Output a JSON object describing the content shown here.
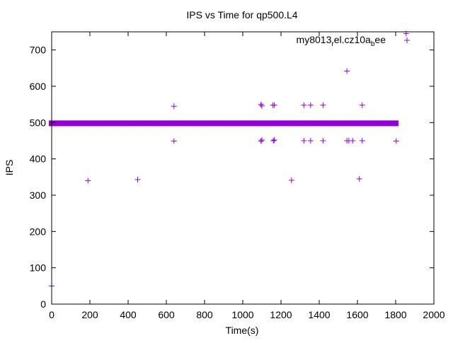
{
  "chart_data": {
    "type": "scatter",
    "title": "IPS vs Time for qp500.L4",
    "xlabel": "Time(s)",
    "ylabel": "IPS",
    "xlim": [
      0,
      2000
    ],
    "ylim": [
      0,
      750
    ],
    "xticks": [
      0,
      200,
      400,
      600,
      800,
      1000,
      1200,
      1400,
      1600,
      1800,
      2000
    ],
    "yticks": [
      0,
      100,
      200,
      300,
      400,
      500,
      600,
      700
    ],
    "grid": false,
    "legend": {
      "placement": "top-right",
      "base": "my8013",
      "sub1": "r",
      "mid": "el.cz10a",
      "sub2": "b",
      "tail": "ee"
    },
    "series": [
      {
        "name": "my8013_rel.cz10a_bee",
        "color": "#9400d3",
        "marker": "+",
        "dense_band": {
          "x_start": 0,
          "x_end": 1800,
          "y_min": 496,
          "y_max": 500
        },
        "points": [
          {
            "x": 0,
            "y": 50
          },
          {
            "x": 190,
            "y": 340
          },
          {
            "x": 450,
            "y": 343
          },
          {
            "x": 640,
            "y": 545
          },
          {
            "x": 640,
            "y": 449
          },
          {
            "x": 1095,
            "y": 550
          },
          {
            "x": 1100,
            "y": 546
          },
          {
            "x": 1095,
            "y": 449
          },
          {
            "x": 1100,
            "y": 452
          },
          {
            "x": 1158,
            "y": 548
          },
          {
            "x": 1165,
            "y": 548
          },
          {
            "x": 1160,
            "y": 450
          },
          {
            "x": 1165,
            "y": 452
          },
          {
            "x": 1255,
            "y": 341
          },
          {
            "x": 1320,
            "y": 548
          },
          {
            "x": 1355,
            "y": 548
          },
          {
            "x": 1320,
            "y": 450
          },
          {
            "x": 1355,
            "y": 450
          },
          {
            "x": 1420,
            "y": 548
          },
          {
            "x": 1420,
            "y": 450
          },
          {
            "x": 1545,
            "y": 642
          },
          {
            "x": 1545,
            "y": 450
          },
          {
            "x": 1555,
            "y": 450
          },
          {
            "x": 1575,
            "y": 450
          },
          {
            "x": 1610,
            "y": 345
          },
          {
            "x": 1625,
            "y": 548
          },
          {
            "x": 1625,
            "y": 450
          },
          {
            "x": 1803,
            "y": 449
          },
          {
            "x": 1855,
            "y": 745
          }
        ]
      }
    ]
  }
}
